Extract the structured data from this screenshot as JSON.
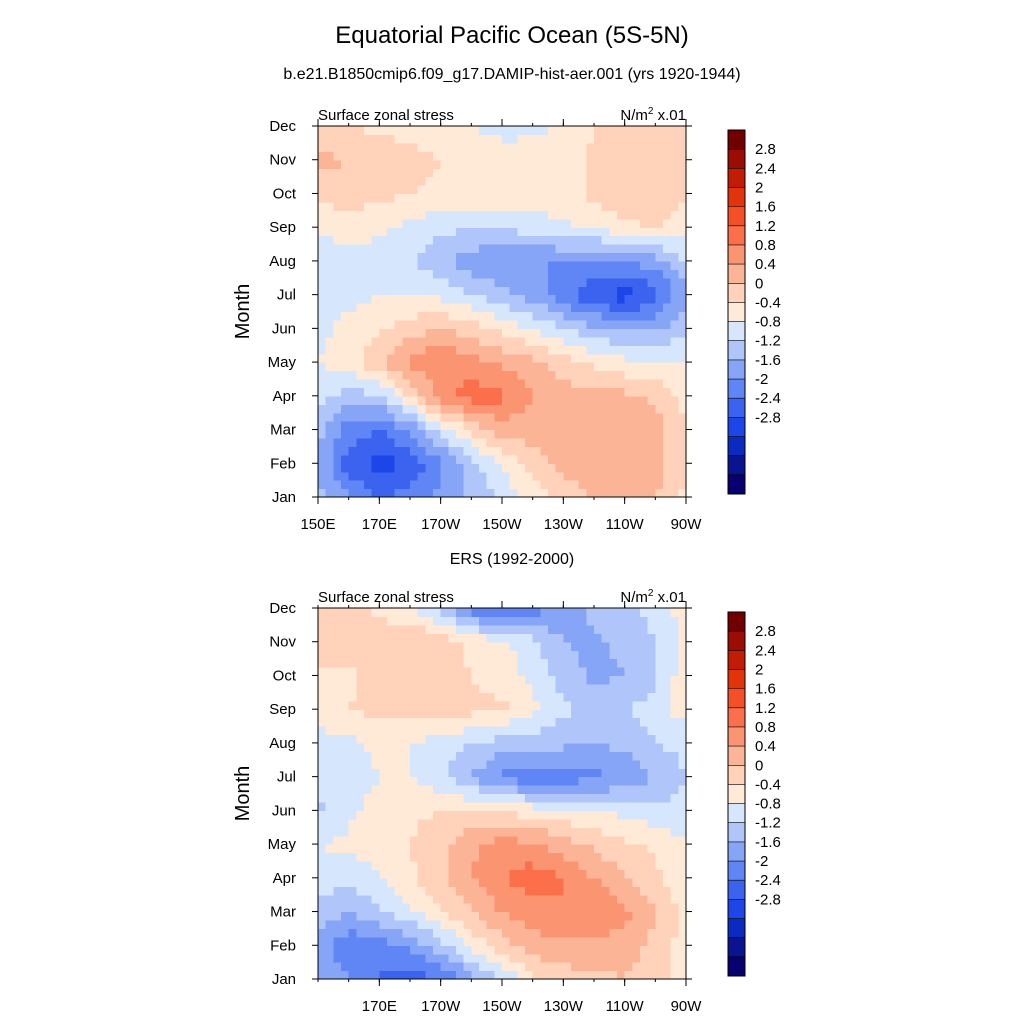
{
  "title": "Equatorial Pacific Ocean (5S-5N)",
  "colors": [
    "#08006e",
    "#0a1491",
    "#0a2bc0",
    "#1c46e8",
    "#3b63f0",
    "#6085f4",
    "#86a5f6",
    "#b0c6fa",
    "#d6e6fc",
    "#ffe9d7",
    "#ffd2b9",
    "#fcb496",
    "#fb9470",
    "#fb704b",
    "#f45028",
    "#e2330b",
    "#c21d04",
    "#9b0c03",
    "#730000"
  ],
  "chart_data": [
    {
      "type": "heatmap",
      "subtitle": "b.e21.B1850cmip6.f09_g17.DAMIP-hist-aer.001 (yrs 1920-1944)",
      "panel_left_label": "Surface zonal stress",
      "panel_right_label": "N/m",
      "units_superscript": "2",
      "units_suffix": " x.01",
      "ylabel": "Month",
      "x_ticks": [
        "150E",
        "170E",
        "170W",
        "150W",
        "130W",
        "110W",
        "90W"
      ],
      "y_ticks": [
        "Jan",
        "Feb",
        "Mar",
        "Apr",
        "May",
        "Jun",
        "Jul",
        "Aug",
        "Sep",
        "Oct",
        "Nov",
        "Dec"
      ],
      "colorbar_labels": [
        "2.8",
        "2.4",
        "2",
        "1.6",
        "1.2",
        "0.8",
        "0.4",
        "0",
        "-0.4",
        "-0.8",
        "-1.2",
        "-1.6",
        "-2",
        "-2.4",
        "-2.8"
      ],
      "x_range": [
        150,
        270
      ],
      "cols": [
        150,
        160,
        170,
        180,
        190,
        200,
        210,
        220,
        230,
        240,
        250,
        260,
        270
      ],
      "values": [
        [
          -0.6,
          -1.2,
          -1.6,
          -1.5,
          -1.1,
          -0.7,
          -0.3,
          0.2,
          0.6,
          0.8,
          0.9,
          0.8,
          0.3
        ],
        [
          -0.9,
          -1.8,
          -2.2,
          -1.9,
          -1.3,
          -0.6,
          0.0,
          0.6,
          0.9,
          1.0,
          1.1,
          1.0,
          0.4
        ],
        [
          -0.6,
          -1.4,
          -1.6,
          -1.1,
          -0.3,
          0.5,
          1.0,
          1.0,
          1.0,
          1.1,
          1.2,
          1.0,
          0.4
        ],
        [
          -0.2,
          -0.6,
          -0.5,
          0.4,
          1.4,
          1.8,
          1.7,
          1.2,
          1.0,
          0.9,
          0.9,
          0.7,
          0.3
        ],
        [
          0.0,
          0.2,
          0.8,
          1.3,
          1.6,
          1.4,
          1.1,
          0.9,
          0.6,
          0.3,
          0.1,
          0.0,
          0.0
        ],
        [
          -0.1,
          0.1,
          0.3,
          0.6,
          0.8,
          0.6,
          0.3,
          0.0,
          -0.4,
          -0.7,
          -0.9,
          -0.9,
          -0.4
        ],
        [
          -0.2,
          -0.1,
          0.0,
          0.0,
          -0.1,
          -0.4,
          -0.7,
          -1.0,
          -1.5,
          -1.9,
          -2.2,
          -1.8,
          -0.9
        ],
        [
          -0.3,
          -0.2,
          -0.2,
          -0.4,
          -0.7,
          -1.0,
          -1.2,
          -1.2,
          -1.2,
          -1.3,
          -1.2,
          -1.0,
          -0.4
        ],
        [
          0.1,
          0.2,
          0.1,
          -0.1,
          -0.3,
          -0.4,
          -0.4,
          -0.2,
          -0.1,
          0.1,
          0.3,
          0.4,
          0.2
        ],
        [
          0.5,
          0.6,
          0.5,
          0.4,
          0.3,
          0.3,
          0.4,
          0.3,
          0.2,
          0.5,
          0.7,
          0.7,
          0.4
        ],
        [
          0.9,
          0.8,
          0.7,
          0.6,
          0.4,
          0.3,
          0.3,
          0.2,
          0.1,
          0.5,
          0.8,
          0.8,
          0.5
        ],
        [
          0.5,
          0.4,
          0.3,
          0.2,
          0.1,
          0.0,
          -0.2,
          -0.1,
          0.1,
          0.4,
          0.6,
          0.6,
          0.4
        ]
      ]
    },
    {
      "type": "heatmap",
      "subtitle": "ERS (1992-2000)",
      "panel_left_label": "Surface zonal stress",
      "panel_right_label": "N/m",
      "units_superscript": "2",
      "units_suffix": " x.01",
      "ylabel": "Month",
      "x_ticks": [
        "170E",
        "170W",
        "150W",
        "130W",
        "110W",
        "90W"
      ],
      "y_ticks": [
        "Jan",
        "Feb",
        "Mar",
        "Apr",
        "May",
        "Jun",
        "Jul",
        "Aug",
        "Sep",
        "Oct",
        "Nov",
        "Dec"
      ],
      "colorbar_labels": [
        "2.8",
        "2.4",
        "2",
        "1.6",
        "1.2",
        "0.8",
        "0.4",
        "0",
        "-0.4",
        "-0.8",
        "-1.2",
        "-1.6",
        "-2",
        "-2.4",
        "-2.8"
      ],
      "x_range": [
        150,
        270
      ],
      "cols": [
        150,
        160,
        170,
        180,
        190,
        200,
        210,
        220,
        230,
        240,
        250,
        260,
        270
      ],
      "values": [
        [
          -0.8,
          -1.2,
          -1.6,
          -1.9,
          -1.6,
          -1.0,
          -0.4,
          0.3,
          0.6,
          0.7,
          0.8,
          0.5,
          0.3
        ],
        [
          -1.0,
          -1.5,
          -1.4,
          -1.1,
          -0.6,
          0.1,
          0.6,
          1.0,
          1.1,
          1.1,
          1.0,
          0.7,
          0.2
        ],
        [
          -0.5,
          -0.8,
          -0.5,
          -0.1,
          0.4,
          0.8,
          1.2,
          1.4,
          1.6,
          1.6,
          1.3,
          0.8,
          0.3
        ],
        [
          -0.2,
          -0.3,
          0.0,
          0.3,
          0.7,
          1.2,
          1.6,
          1.8,
          1.6,
          1.2,
          0.8,
          0.5,
          0.1
        ],
        [
          0.0,
          0.1,
          0.2,
          0.4,
          0.7,
          1.1,
          1.4,
          1.3,
          1.0,
          0.7,
          0.5,
          0.3,
          0.0
        ],
        [
          -0.5,
          -0.1,
          0.2,
          0.3,
          0.4,
          0.4,
          0.3,
          0.2,
          0.1,
          0.0,
          -0.1,
          -0.3,
          -0.2
        ],
        [
          -0.3,
          -0.2,
          0.0,
          0.0,
          -0.3,
          -0.8,
          -1.3,
          -1.5,
          -1.5,
          -1.3,
          -1.2,
          -0.8,
          -0.4
        ],
        [
          -0.2,
          -0.1,
          0.1,
          0.0,
          -0.2,
          -0.4,
          -0.6,
          -0.6,
          -0.7,
          -0.8,
          -0.7,
          -0.4,
          -0.3
        ],
        [
          0.3,
          0.4,
          0.5,
          0.6,
          0.7,
          0.5,
          0.5,
          0.1,
          -0.3,
          -0.5,
          -0.4,
          -0.2,
          0.2
        ],
        [
          0.3,
          0.3,
          0.6,
          0.7,
          0.6,
          0.4,
          0.2,
          -0.1,
          -0.6,
          -0.9,
          -0.8,
          -0.5,
          0.3
        ],
        [
          0.6,
          0.6,
          0.6,
          0.8,
          0.7,
          0.3,
          0.1,
          -0.3,
          -0.8,
          -0.9,
          -0.7,
          -0.4,
          0.2
        ],
        [
          0.4,
          0.6,
          0.3,
          0.1,
          -0.6,
          -1.4,
          -1.7,
          -1.4,
          -1.0,
          -0.7,
          -0.5,
          -0.3,
          0.2
        ]
      ]
    }
  ]
}
